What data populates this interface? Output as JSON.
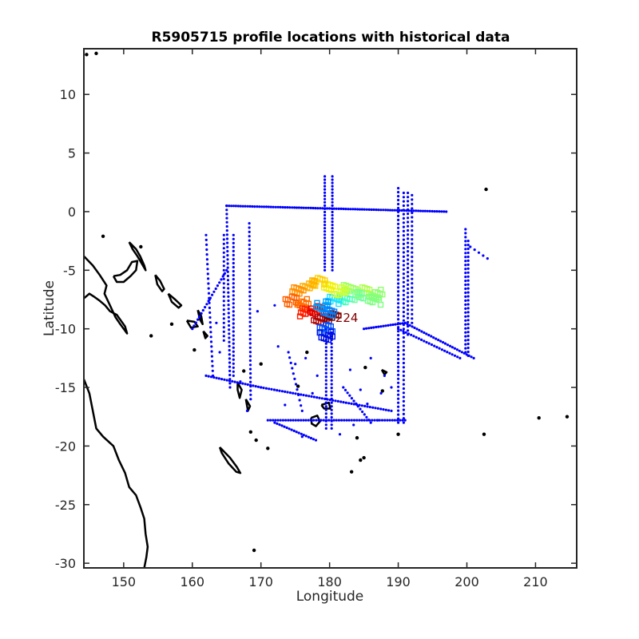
{
  "chart_data": {
    "type": "scatter",
    "title": "R5905715 profile locations with historical data",
    "xlabel": "Longitude",
    "ylabel": "Latitude",
    "xlim": [
      144.2,
      216.0
    ],
    "ylim": [
      -30.4,
      13.9
    ],
    "xticks": [
      150,
      160,
      170,
      180,
      190,
      200,
      210
    ],
    "yticks": [
      10,
      5,
      0,
      -5,
      -10,
      -15,
      -20,
      -25,
      -30
    ],
    "grid": false,
    "legend": "none",
    "colors": {
      "historical": "#0000ff",
      "coastline": "#000000",
      "profile_label": "#800000"
    },
    "profile_label_text": "224",
    "profile_label_position": [
      182.5,
      -9.4
    ],
    "historical_tracks": [
      {
        "from": [
          179.3,
          3.0
        ],
        "to": [
          179.3,
          -5.0
        ],
        "n": 30
      },
      {
        "from": [
          180.4,
          3.0
        ],
        "to": [
          180.4,
          -5.0
        ],
        "n": 30
      },
      {
        "from": [
          165.0,
          0.5
        ],
        "to": [
          197.0,
          0.0
        ],
        "n": 95
      },
      {
        "from": [
          190.0,
          2.0
        ],
        "to": [
          190.0,
          -18.0
        ],
        "n": 60
      },
      {
        "from": [
          190.8,
          1.6
        ],
        "to": [
          190.8,
          -18.0
        ],
        "n": 55
      },
      {
        "from": [
          191.4,
          1.6
        ],
        "to": [
          191.4,
          -10.5
        ],
        "n": 35
      },
      {
        "from": [
          192.0,
          1.4
        ],
        "to": [
          192.0,
          -9.5
        ],
        "n": 30
      },
      {
        "from": [
          199.8,
          -1.5
        ],
        "to": [
          199.8,
          -12.0
        ],
        "n": 32
      },
      {
        "from": [
          200.2,
          -2.5
        ],
        "to": [
          200.2,
          -12.3
        ],
        "n": 30
      },
      {
        "from": [
          179.5,
          -10.0
        ],
        "to": [
          179.5,
          -18.5
        ],
        "n": 28
      },
      {
        "from": [
          180.3,
          -10.0
        ],
        "to": [
          180.3,
          -18.5
        ],
        "n": 28
      },
      {
        "from": [
          165.0,
          0.5
        ],
        "to": [
          165.5,
          -15.0
        ],
        "n": 45
      },
      {
        "from": [
          164.6,
          -2.0
        ],
        "to": [
          164.6,
          -11.0
        ],
        "n": 25
      },
      {
        "from": [
          168.3,
          -1.0
        ],
        "to": [
          168.5,
          -16.0
        ],
        "n": 42
      },
      {
        "from": [
          166.0,
          -2.0
        ],
        "to": [
          166.0,
          -14.0
        ],
        "n": 36
      },
      {
        "from": [
          170.0,
          -15.0
        ],
        "to": [
          189.0,
          -17.0
        ],
        "n": 50
      },
      {
        "from": [
          171.0,
          -17.8
        ],
        "to": [
          191.0,
          -17.8
        ],
        "n": 55
      },
      {
        "from": [
          165.0,
          -5.0
        ],
        "to": [
          160.0,
          -10.0
        ],
        "n": 20
      },
      {
        "from": [
          162.0,
          -2.0
        ],
        "to": [
          163.0,
          -14.0
        ],
        "n": 30
      },
      {
        "from": [
          185.0,
          -10.0
        ],
        "to": [
          191.0,
          -9.5
        ],
        "n": 18
      },
      {
        "from": [
          191.0,
          -9.5
        ],
        "to": [
          201.0,
          -12.5
        ],
        "n": 30
      },
      {
        "from": [
          190.0,
          -10.0
        ],
        "to": [
          199.0,
          -12.5
        ],
        "n": 25
      },
      {
        "from": [
          162.0,
          -14.0
        ],
        "to": [
          170.0,
          -15.0
        ],
        "n": 22
      },
      {
        "from": [
          172.0,
          -18.0
        ],
        "to": [
          178.0,
          -19.5
        ],
        "n": 18
      },
      {
        "from": [
          182.0,
          -15.0
        ],
        "to": [
          186.0,
          -18.0
        ],
        "n": 14
      },
      {
        "from": [
          200.5,
          -3.0
        ],
        "to": [
          203.0,
          -4.0
        ],
        "n": 5
      },
      {
        "from": [
          174.0,
          -12.0
        ],
        "to": [
          176.0,
          -17.0
        ],
        "n": 12
      }
    ],
    "historical_points": [
      [
        167.0,
        -14.5
      ],
      [
        168.0,
        -17.0
      ],
      [
        169.5,
        -8.5
      ],
      [
        172.0,
        -8.0
      ],
      [
        175.0,
        -13.0
      ],
      [
        176.5,
        -12.5
      ],
      [
        183.0,
        -13.5
      ],
      [
        186.0,
        -12.5
      ],
      [
        187.5,
        -15.5
      ],
      [
        188.0,
        -14.0
      ],
      [
        184.5,
        -15.2
      ],
      [
        185.5,
        -16.4
      ],
      [
        172.5,
        -11.5
      ],
      [
        173.5,
        -16.5
      ],
      [
        177.5,
        -15.5
      ],
      [
        164.0,
        -12.0
      ],
      [
        163.5,
        -9.5
      ],
      [
        162.5,
        -7.5
      ],
      [
        161.0,
        -9.0
      ],
      [
        189.0,
        -15.0
      ],
      [
        183.5,
        -18.2
      ],
      [
        181.5,
        -19.0
      ],
      [
        176.0,
        -19.2
      ],
      [
        187.0,
        -17.8
      ],
      [
        178.2,
        -14.0
      ]
    ],
    "profile_cluster": [
      {
        "lon": 183.0,
        "lat": -6.6,
        "color": "#a0ff60"
      },
      {
        "lon": 185.0,
        "lat": -6.8,
        "color": "#b0ff50"
      },
      {
        "lon": 187.0,
        "lat": -7.0,
        "color": "#90ff70"
      },
      {
        "lon": 186.5,
        "lat": -7.6,
        "color": "#80ff80"
      },
      {
        "lon": 184.0,
        "lat": -7.2,
        "color": "#70ffa0"
      },
      {
        "lon": 182.0,
        "lat": -7.4,
        "color": "#40ffc0"
      },
      {
        "lon": 180.5,
        "lat": -7.6,
        "color": "#20e0ff"
      },
      {
        "lon": 181.5,
        "lat": -6.8,
        "color": "#d0ff30"
      },
      {
        "lon": 180.0,
        "lat": -6.4,
        "color": "#f0f000"
      },
      {
        "lon": 178.5,
        "lat": -6.0,
        "color": "#ffd000"
      },
      {
        "lon": 177.0,
        "lat": -6.2,
        "color": "#ffb000"
      },
      {
        "lon": 175.5,
        "lat": -6.8,
        "color": "#ff9000"
      },
      {
        "lon": 174.5,
        "lat": -7.6,
        "color": "#ff6000"
      },
      {
        "lon": 176.0,
        "lat": -7.8,
        "color": "#ff7000"
      },
      {
        "lon": 176.5,
        "lat": -8.6,
        "color": "#ff2000"
      },
      {
        "lon": 178.0,
        "lat": -8.4,
        "color": "#e00000"
      },
      {
        "lon": 178.5,
        "lat": -9.2,
        "color": "#b00000"
      },
      {
        "lon": 180.5,
        "lat": -9.0,
        "color": "#800000"
      },
      {
        "lon": 179.0,
        "lat": -8.0,
        "color": "#00a0ff"
      },
      {
        "lon": 180.0,
        "lat": -8.6,
        "color": "#0080ff"
      },
      {
        "lon": 179.5,
        "lat": -10.0,
        "color": "#0050ff"
      },
      {
        "lon": 179.5,
        "lat": -10.6,
        "color": "#0010e0"
      }
    ],
    "coastlines": [
      {
        "name": "australia",
        "points": [
          [
            144.2,
            -14.3
          ],
          [
            145.0,
            -15.5
          ],
          [
            145.5,
            -17.0
          ],
          [
            146.0,
            -18.5
          ],
          [
            147.0,
            -19.2
          ],
          [
            148.5,
            -20.0
          ],
          [
            149.3,
            -21.2
          ],
          [
            150.2,
            -22.3
          ],
          [
            150.8,
            -23.5
          ],
          [
            151.8,
            -24.2
          ],
          [
            152.5,
            -25.3
          ],
          [
            153.0,
            -26.2
          ],
          [
            153.2,
            -27.5
          ],
          [
            153.5,
            -28.6
          ],
          [
            153.3,
            -29.5
          ],
          [
            153.0,
            -30.4
          ]
        ]
      },
      {
        "name": "papua",
        "points": [
          [
            144.2,
            -3.8
          ],
          [
            145.5,
            -4.6
          ],
          [
            146.5,
            -5.4
          ],
          [
            147.5,
            -6.3
          ],
          [
            147.2,
            -7.0
          ],
          [
            148.0,
            -8.0
          ],
          [
            148.8,
            -9.0
          ],
          [
            149.5,
            -9.6
          ],
          [
            150.5,
            -10.4
          ],
          [
            150.2,
            -9.8
          ],
          [
            149.0,
            -8.8
          ],
          [
            148.0,
            -8.5
          ],
          [
            147.3,
            -8.0
          ],
          [
            146.5,
            -7.6
          ],
          [
            145.8,
            -7.3
          ],
          [
            145.0,
            -7.0
          ],
          [
            144.2,
            -7.4
          ]
        ]
      },
      {
        "name": "new-britain",
        "points": [
          [
            148.5,
            -5.5
          ],
          [
            149.5,
            -5.4
          ],
          [
            150.5,
            -5.0
          ],
          [
            151.2,
            -4.3
          ],
          [
            152.0,
            -4.2
          ],
          [
            151.8,
            -5.0
          ],
          [
            151.0,
            -5.5
          ],
          [
            150.0,
            -6.0
          ],
          [
            149.0,
            -6.0
          ],
          [
            148.5,
            -5.5
          ]
        ]
      },
      {
        "name": "new-ireland",
        "points": [
          [
            150.8,
            -2.6
          ],
          [
            151.8,
            -3.2
          ],
          [
            152.4,
            -3.8
          ],
          [
            153.0,
            -4.6
          ],
          [
            153.2,
            -5.0
          ],
          [
            152.8,
            -4.6
          ],
          [
            152.0,
            -3.8
          ],
          [
            151.3,
            -3.2
          ],
          [
            150.8,
            -2.6
          ]
        ]
      },
      {
        "name": "bougainville",
        "points": [
          [
            154.6,
            -5.4
          ],
          [
            155.3,
            -5.9
          ],
          [
            155.9,
            -6.6
          ],
          [
            155.6,
            -6.8
          ],
          [
            154.9,
            -6.2
          ],
          [
            154.6,
            -5.4
          ]
        ]
      },
      {
        "name": "solomon-a",
        "points": [
          [
            156.5,
            -7.0
          ],
          [
            157.5,
            -7.5
          ],
          [
            158.4,
            -8.0
          ],
          [
            158.0,
            -8.2
          ],
          [
            157.0,
            -7.7
          ],
          [
            156.5,
            -7.0
          ]
        ]
      },
      {
        "name": "solomon-b",
        "points": [
          [
            159.2,
            -9.3
          ],
          [
            160.3,
            -9.4
          ],
          [
            160.8,
            -9.8
          ],
          [
            159.8,
            -9.9
          ],
          [
            159.2,
            -9.3
          ]
        ]
      },
      {
        "name": "solomon-c",
        "points": [
          [
            160.8,
            -8.4
          ],
          [
            161.3,
            -8.9
          ],
          [
            161.5,
            -9.6
          ],
          [
            161.1,
            -9.2
          ],
          [
            160.8,
            -8.4
          ]
        ]
      },
      {
        "name": "solomon-d",
        "points": [
          [
            161.6,
            -10.2
          ],
          [
            162.2,
            -10.6
          ],
          [
            161.9,
            -10.8
          ],
          [
            161.6,
            -10.2
          ]
        ]
      },
      {
        "name": "vanuatu-a",
        "points": [
          [
            166.6,
            -14.6
          ],
          [
            167.2,
            -15.2
          ],
          [
            166.9,
            -15.9
          ],
          [
            166.6,
            -15.2
          ],
          [
            166.6,
            -14.6
          ]
        ]
      },
      {
        "name": "vanuatu-b",
        "points": [
          [
            167.8,
            -16.0
          ],
          [
            168.4,
            -16.6
          ],
          [
            168.1,
            -17.0
          ],
          [
            167.8,
            -16.0
          ]
        ]
      },
      {
        "name": "new-caledonia",
        "points": [
          [
            164.0,
            -20.1
          ],
          [
            165.5,
            -21.0
          ],
          [
            166.5,
            -21.8
          ],
          [
            167.0,
            -22.3
          ],
          [
            166.4,
            -22.2
          ],
          [
            165.3,
            -21.5
          ],
          [
            164.3,
            -20.6
          ],
          [
            164.0,
            -20.1
          ]
        ]
      },
      {
        "name": "fiji-a",
        "points": [
          [
            177.3,
            -17.6
          ],
          [
            178.2,
            -17.4
          ],
          [
            178.6,
            -17.9
          ],
          [
            178.0,
            -18.3
          ],
          [
            177.4,
            -18.1
          ],
          [
            177.3,
            -17.6
          ]
        ]
      },
      {
        "name": "fiji-b",
        "points": [
          [
            178.8,
            -16.5
          ],
          [
            179.9,
            -16.3
          ],
          [
            180.1,
            -16.8
          ],
          [
            179.2,
            -16.8
          ],
          [
            178.8,
            -16.5
          ]
        ]
      },
      {
        "name": "samoa",
        "points": [
          [
            187.6,
            -13.5
          ],
          [
            188.3,
            -13.7
          ],
          [
            188.0,
            -13.9
          ],
          [
            187.6,
            -13.5
          ]
        ]
      }
    ],
    "islets": [
      [
        144.6,
        13.4
      ],
      [
        146.0,
        13.5
      ],
      [
        147.0,
        -2.1
      ],
      [
        152.5,
        -3.0
      ],
      [
        154.0,
        -10.6
      ],
      [
        157.0,
        -9.6
      ],
      [
        160.3,
        -11.8
      ],
      [
        167.5,
        -13.6
      ],
      [
        168.5,
        -18.8
      ],
      [
        169.3,
        -19.5
      ],
      [
        184.0,
        -19.3
      ],
      [
        185.0,
        -21.0
      ],
      [
        184.5,
        -21.2
      ],
      [
        183.2,
        -22.2
      ],
      [
        190.0,
        -19.0
      ],
      [
        202.8,
        1.9
      ],
      [
        202.5,
        -19.0
      ],
      [
        210.5,
        -17.6
      ],
      [
        214.6,
        -17.5
      ],
      [
        169.0,
        -28.9
      ],
      [
        175.4,
        -14.9
      ],
      [
        171.0,
        -20.2
      ],
      [
        176.7,
        -12.0
      ],
      [
        170.0,
        -13.0
      ],
      [
        187.7,
        -15.3
      ],
      [
        185.2,
        -13.3
      ]
    ]
  }
}
